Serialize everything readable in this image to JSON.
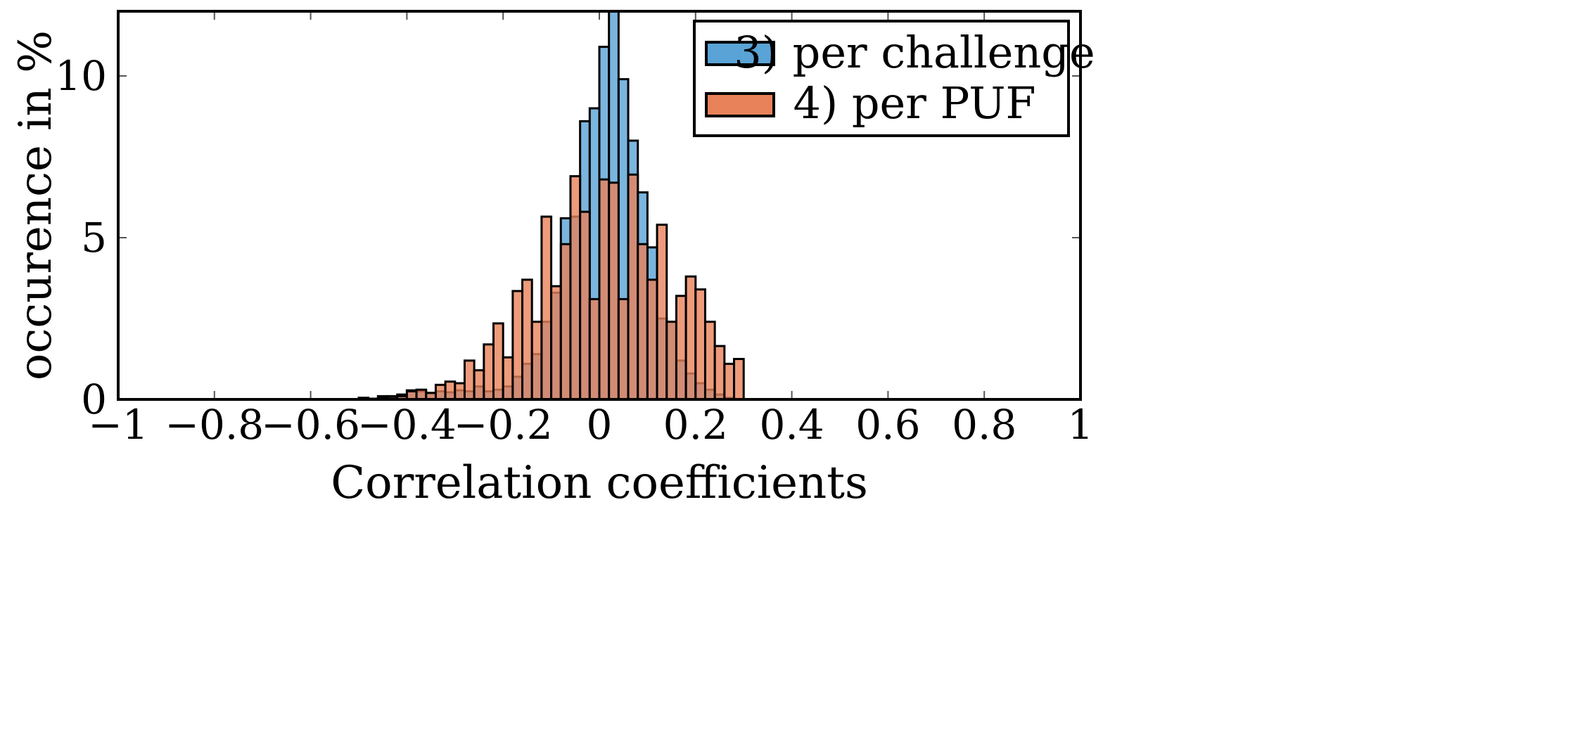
{
  "chart_data": {
    "type": "bar",
    "title": "",
    "xlabel": "Correlation coefficients",
    "ylabel": "occurence in %",
    "xlim": [
      -1,
      1
    ],
    "ylim": [
      0,
      12
    ],
    "bin_width": 0.02,
    "xticks": [
      -1,
      -0.8,
      -0.6,
      -0.4,
      -0.2,
      0,
      0.2,
      0.4,
      0.6,
      0.8,
      1
    ],
    "xtick_labels": [
      "−1",
      "−0.8",
      "−0.6",
      "−0.4",
      "−0.2",
      "0",
      "0.2",
      "0.4",
      "0.6",
      "0.8",
      "1"
    ],
    "yticks": [
      0,
      5,
      10
    ],
    "ytick_labels": [
      "0",
      "5",
      "10"
    ],
    "legend_position": "top-right",
    "series": [
      {
        "name": "3) per challenge",
        "color": "#5aa3d6",
        "bins": [
          [
            -0.5,
            0.05
          ],
          [
            -0.48,
            0.02
          ],
          [
            -0.46,
            0.1
          ],
          [
            -0.44,
            0.1
          ],
          [
            -0.42,
            0.15
          ],
          [
            -0.4,
            0.28
          ],
          [
            -0.38,
            0.25
          ],
          [
            -0.36,
            0.2
          ],
          [
            -0.34,
            0.25
          ],
          [
            -0.32,
            0.22
          ],
          [
            -0.3,
            0.28
          ],
          [
            -0.28,
            0.25
          ],
          [
            -0.26,
            0.4
          ],
          [
            -0.24,
            0.25
          ],
          [
            -0.22,
            0.3
          ],
          [
            -0.2,
            0.4
          ],
          [
            -0.18,
            0.7
          ],
          [
            -0.16,
            1.1
          ],
          [
            -0.14,
            1.4
          ],
          [
            -0.12,
            2.4
          ],
          [
            -0.1,
            3.3
          ],
          [
            -0.08,
            5.6
          ],
          [
            -0.06,
            5.65
          ],
          [
            -0.04,
            8.6
          ],
          [
            -0.02,
            9.0
          ],
          [
            0.0,
            10.9
          ],
          [
            0.02,
            12.0
          ],
          [
            0.04,
            9.9
          ],
          [
            0.06,
            8.0
          ],
          [
            0.08,
            6.4
          ],
          [
            0.1,
            4.7
          ],
          [
            0.12,
            2.5
          ],
          [
            0.14,
            2.4
          ],
          [
            0.16,
            1.2
          ],
          [
            0.18,
            0.8
          ],
          [
            0.2,
            0.5
          ],
          [
            0.22,
            0.3
          ],
          [
            0.24,
            0.15
          ],
          [
            0.26,
            0.05
          ]
        ]
      },
      {
        "name": "4) per PUF",
        "color": "#e8825a",
        "bins": [
          [
            -0.5,
            0.02
          ],
          [
            -0.48,
            0.02
          ],
          [
            -0.46,
            0.05
          ],
          [
            -0.44,
            0.08
          ],
          [
            -0.42,
            0.1
          ],
          [
            -0.4,
            0.25
          ],
          [
            -0.38,
            0.3
          ],
          [
            -0.36,
            0.2
          ],
          [
            -0.34,
            0.45
          ],
          [
            -0.32,
            0.55
          ],
          [
            -0.3,
            0.5
          ],
          [
            -0.28,
            1.2
          ],
          [
            -0.26,
            0.9
          ],
          [
            -0.24,
            1.7
          ],
          [
            -0.22,
            2.35
          ],
          [
            -0.2,
            1.3
          ],
          [
            -0.18,
            3.35
          ],
          [
            -0.16,
            3.7
          ],
          [
            -0.14,
            2.4
          ],
          [
            -0.12,
            5.65
          ],
          [
            -0.1,
            3.5
          ],
          [
            -0.08,
            4.8
          ],
          [
            -0.06,
            6.9
          ],
          [
            -0.04,
            5.8
          ],
          [
            -0.02,
            3.1
          ],
          [
            0.0,
            6.8
          ],
          [
            0.02,
            6.7
          ],
          [
            0.04,
            3.1
          ],
          [
            0.06,
            6.95
          ],
          [
            0.08,
            4.8
          ],
          [
            0.1,
            3.7
          ],
          [
            0.12,
            5.4
          ],
          [
            0.14,
            2.4
          ],
          [
            0.16,
            3.2
          ],
          [
            0.18,
            3.8
          ],
          [
            0.2,
            3.4
          ],
          [
            0.22,
            2.4
          ],
          [
            0.24,
            1.65
          ],
          [
            0.26,
            1.1
          ],
          [
            0.28,
            1.25
          ]
        ]
      }
    ]
  }
}
